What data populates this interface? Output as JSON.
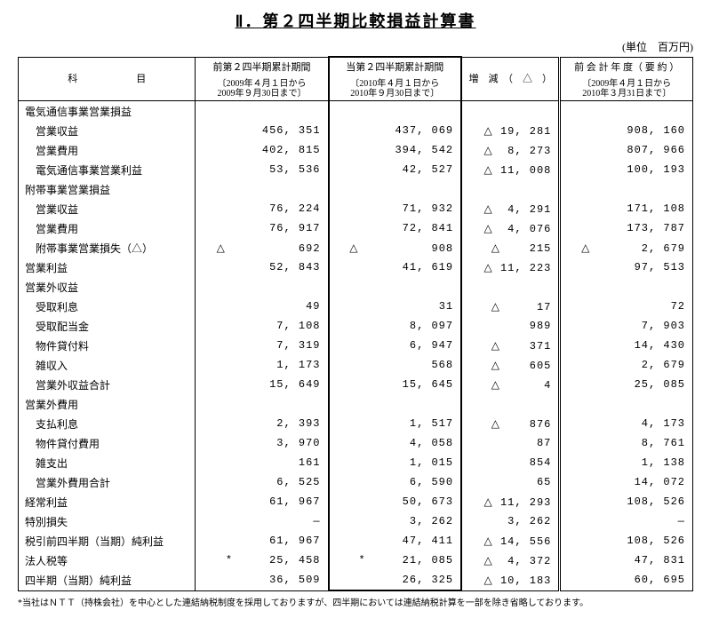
{
  "title": "Ⅱ．第２四半期比較損益計算書",
  "unit": "(単位　百万円)",
  "headers": {
    "item": "科　　　　　　目",
    "col1_top": "前第２四半期累計期間",
    "col1_sub": "2009年４月１日から\n2009年９月30日まで",
    "col2_top": "当第２四半期累計期間",
    "col2_sub": "2010年４月１日から\n2010年９月30日まで",
    "col3": "増　減　（　△　）",
    "col4_top": "前 会 計 年 度（ 要 約 ）",
    "col4_sub": "2009年４月１日から\n2010年３月31日まで"
  },
  "rows": [
    {
      "label": "電気通信事業営業損益",
      "indent": 0,
      "c1": "",
      "c2": "",
      "c3": "",
      "c4": ""
    },
    {
      "label": "営業収益",
      "indent": 1,
      "c1": "456,351",
      "c2": "437,069",
      "c3": "△ 19,281",
      "c4": "908,160"
    },
    {
      "label": "営業費用",
      "indent": 1,
      "c1": "402,815",
      "c2": "394,542",
      "c3": "△  8,273",
      "c4": "807,966"
    },
    {
      "label": "電気通信事業営業利益",
      "indent": 1,
      "c1": "53,536",
      "c2": "42,527",
      "c3": "△ 11,008",
      "c4": "100,193"
    },
    {
      "label": "附帯事業営業損益",
      "indent": 0,
      "c1": "",
      "c2": "",
      "c3": "",
      "c4": ""
    },
    {
      "label": "営業収益",
      "indent": 1,
      "c1": "76,224",
      "c2": "71,932",
      "c3": "△  4,291",
      "c4": "171,108"
    },
    {
      "label": "営業費用",
      "indent": 1,
      "c1": "76,917",
      "c2": "72,841",
      "c3": "△  4,076",
      "c4": "173,787"
    },
    {
      "label": "附帯事業営業損失（△）",
      "indent": 1,
      "c1": "△          692",
      "c2": "△          908",
      "c3": "△    215",
      "c4": "△       2,679"
    },
    {
      "label": "営業利益",
      "indent": 0,
      "c1": "52,843",
      "c2": "41,619",
      "c3": "△ 11,223",
      "c4": "97,513"
    },
    {
      "label": "営業外収益",
      "indent": 0,
      "c1": "",
      "c2": "",
      "c3": "",
      "c4": ""
    },
    {
      "label": "受取利息",
      "indent": 1,
      "c1": "49",
      "c2": "31",
      "c3": "△     17",
      "c4": "72"
    },
    {
      "label": "受取配当金",
      "indent": 1,
      "c1": "7,108",
      "c2": "8,097",
      "c3": "989",
      "c4": "7,903"
    },
    {
      "label": "物件貸付料",
      "indent": 1,
      "c1": "7,319",
      "c2": "6,947",
      "c3": "△    371",
      "c4": "14,430"
    },
    {
      "label": "雑収入",
      "indent": 1,
      "c1": "1,173",
      "c2": "568",
      "c3": "△    605",
      "c4": "2,679"
    },
    {
      "label": "営業外収益合計",
      "indent": 1,
      "c1": "15,649",
      "c2": "15,645",
      "c3": "△      4",
      "c4": "25,085"
    },
    {
      "label": "営業外費用",
      "indent": 0,
      "c1": "",
      "c2": "",
      "c3": "",
      "c4": ""
    },
    {
      "label": "支払利息",
      "indent": 1,
      "c1": "2,393",
      "c2": "1,517",
      "c3": "△    876",
      "c4": "4,173"
    },
    {
      "label": "物件貸付費用",
      "indent": 1,
      "c1": "3,970",
      "c2": "4,058",
      "c3": "87",
      "c4": "8,761"
    },
    {
      "label": "雑支出",
      "indent": 1,
      "c1": "161",
      "c2": "1,015",
      "c3": "854",
      "c4": "1,138"
    },
    {
      "label": "営業外費用合計",
      "indent": 1,
      "c1": "6,525",
      "c2": "6,590",
      "c3": "65",
      "c4": "14,072"
    },
    {
      "label": "経常利益",
      "indent": 0,
      "c1": "61,967",
      "c2": "50,673",
      "c3": "△ 11,293",
      "c4": "108,526"
    },
    {
      "label": "特別損失",
      "indent": 0,
      "c1": "―",
      "c2": "3,262",
      "c3": "3,262",
      "c4": "―"
    },
    {
      "label": "税引前四半期（当期）純利益",
      "indent": 0,
      "c1": "61,967",
      "c2": "47,411",
      "c3": "△ 14,556",
      "c4": "108,526"
    },
    {
      "label": "法人税等",
      "indent": 0,
      "c1": "*     25,458",
      "c2": "*     21,085",
      "c3": "△  4,372",
      "c4": "47,831"
    },
    {
      "label": "四半期（当期）純利益",
      "indent": 0,
      "c1": "36,509",
      "c2": "26,325",
      "c3": "△ 10,183",
      "c4": "60,695"
    }
  ],
  "footnote": "*当社はＮＴＴ（持株会社）を中心とした連結納税制度を採用しておりますが、四半期においては連結納税計算を一部を除き省略しております。"
}
